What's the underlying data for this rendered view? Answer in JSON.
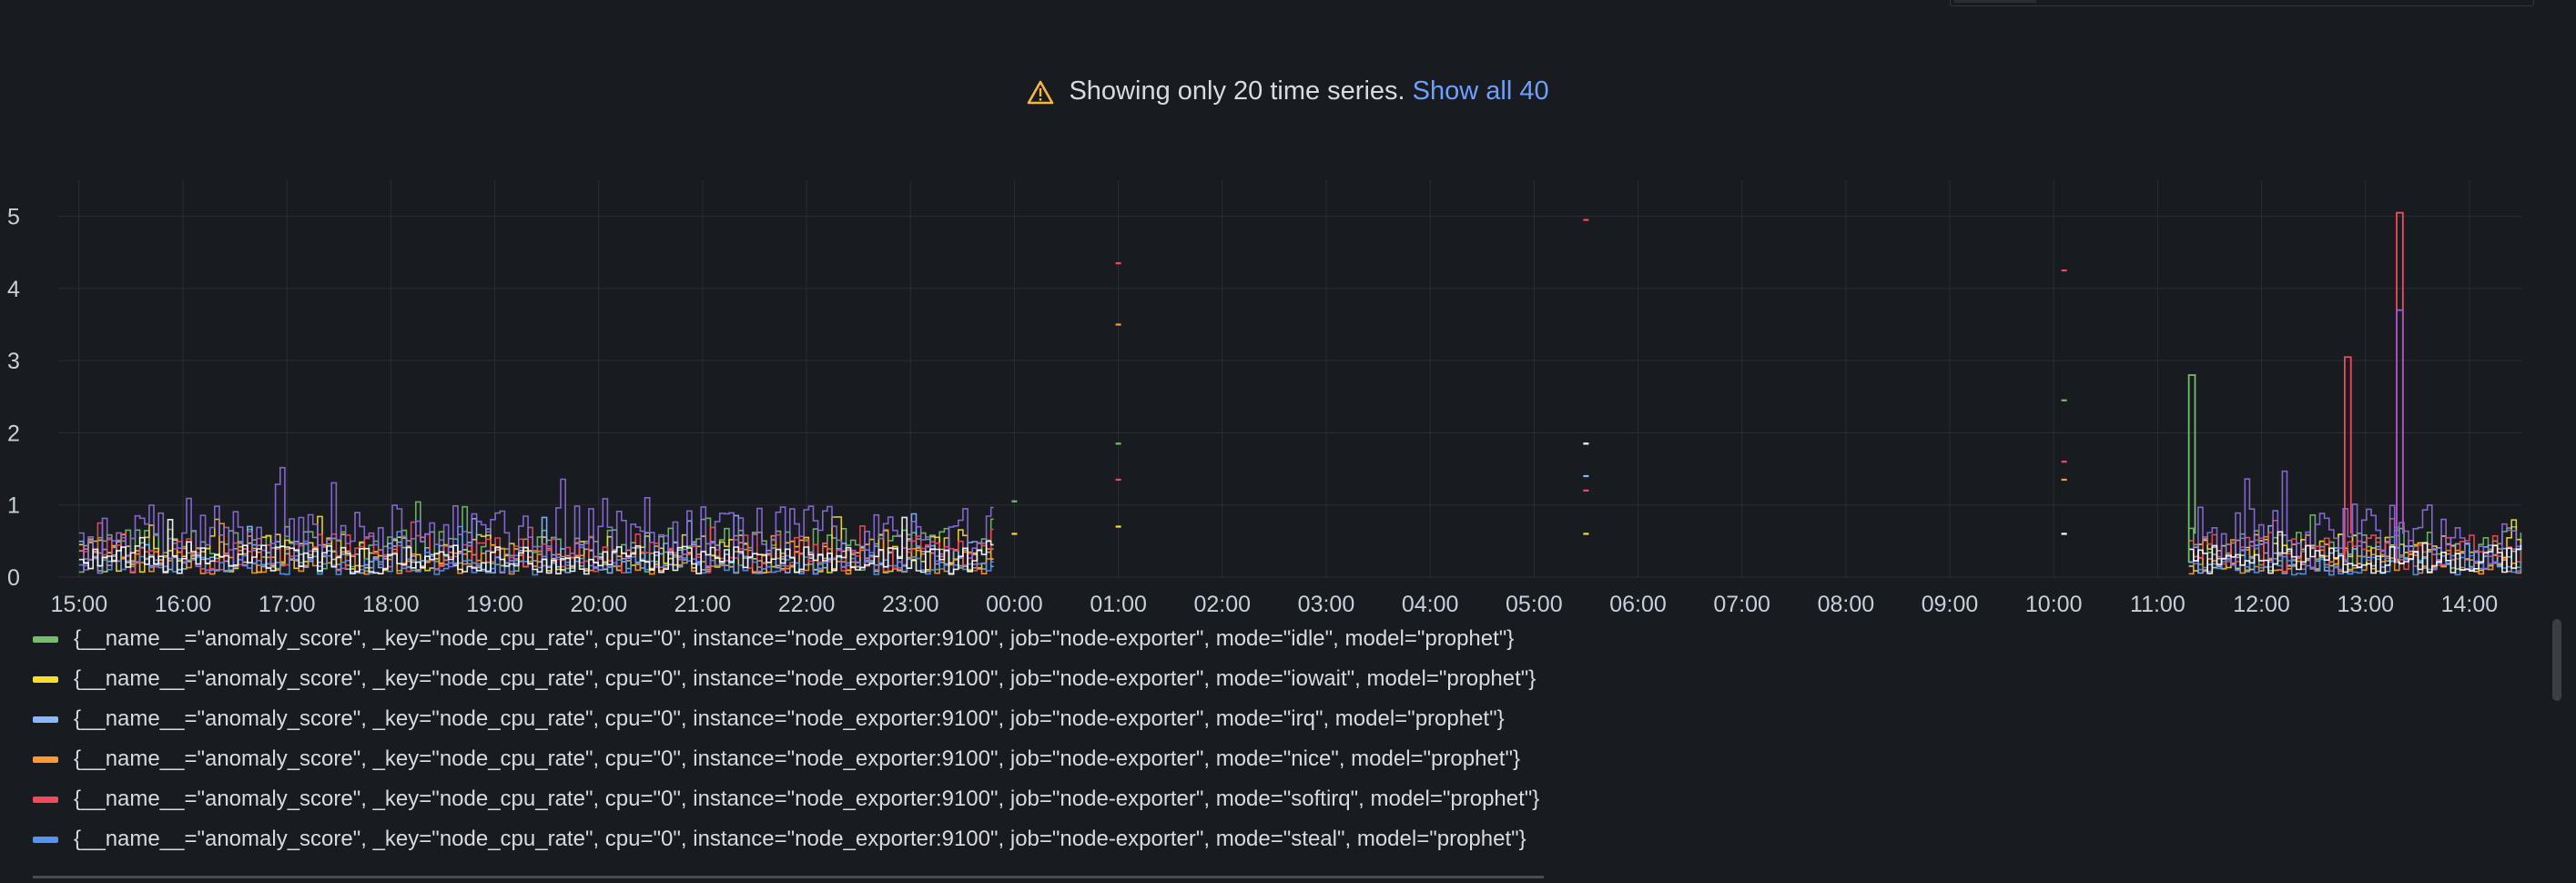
{
  "notice": {
    "text": "Showing only 20 time series.",
    "link": "Show all 40",
    "icon": "warning-triangle-icon"
  },
  "chart_data": {
    "type": "line",
    "title": "",
    "xlabel": "",
    "ylabel": "",
    "grid": true,
    "ylim": [
      0,
      5.5
    ],
    "y_ticks": [
      "0",
      "1",
      "2",
      "3",
      "4",
      "5"
    ],
    "x_ticks": [
      "15:00",
      "16:00",
      "17:00",
      "18:00",
      "19:00",
      "20:00",
      "21:00",
      "22:00",
      "23:00",
      "00:00",
      "01:00",
      "02:00",
      "03:00",
      "04:00",
      "05:00",
      "06:00",
      "07:00",
      "08:00",
      "09:00",
      "10:00",
      "11:00",
      "12:00",
      "13:00",
      "14:00"
    ],
    "x_range_hours": [
      14.8,
      38.5
    ],
    "segments": [
      {
        "from": 15.0,
        "to": 23.8
      },
      {
        "from": 35.3,
        "to": 38.5
      }
    ],
    "isolated_points": [
      {
        "x": 24.0,
        "y": 1.05,
        "color": "#73bf69"
      },
      {
        "x": 24.0,
        "y": 0.6,
        "color": "#fade2a"
      },
      {
        "x": 25.0,
        "y": 4.35,
        "color": "#f2495c"
      },
      {
        "x": 25.0,
        "y": 3.5,
        "color": "#ff9830"
      },
      {
        "x": 25.0,
        "y": 1.85,
        "color": "#73bf69"
      },
      {
        "x": 25.0,
        "y": 1.35,
        "color": "#f2495c"
      },
      {
        "x": 25.0,
        "y": 0.7,
        "color": "#fade2a"
      },
      {
        "x": 29.5,
        "y": 4.95,
        "color": "#f2495c"
      },
      {
        "x": 29.5,
        "y": 1.85,
        "color": "#ffffff"
      },
      {
        "x": 29.5,
        "y": 1.4,
        "color": "#8ab8ff"
      },
      {
        "x": 29.5,
        "y": 1.2,
        "color": "#f2495c"
      },
      {
        "x": 29.5,
        "y": 0.6,
        "color": "#fade2a"
      },
      {
        "x": 34.1,
        "y": 4.25,
        "color": "#f2495c"
      },
      {
        "x": 34.1,
        "y": 2.45,
        "color": "#73bf69"
      },
      {
        "x": 34.1,
        "y": 1.6,
        "color": "#f2495c"
      },
      {
        "x": 34.1,
        "y": 1.35,
        "color": "#ff9830"
      },
      {
        "x": 34.1,
        "y": 0.6,
        "color": "#ffffff"
      }
    ],
    "spikes": [
      {
        "x": 35.3,
        "y": 2.8,
        "color": "#73bf69"
      },
      {
        "x": 36.8,
        "y": 3.05,
        "color": "#f2495c"
      },
      {
        "x": 37.3,
        "y": 5.05,
        "color": "#f2495c"
      },
      {
        "x": 37.3,
        "y": 3.7,
        "color": "#a352cc"
      }
    ],
    "series": [
      {
        "name": "{__name__=\"anomaly_score\", _key=\"node_cpu_rate\", cpu=\"0\", instance=\"node_exporter:9100\", job=\"node-exporter\", mode=\"idle\", model=\"prophet\"}",
        "color": "#73bf69",
        "base": 0.35
      },
      {
        "name": "{__name__=\"anomaly_score\", _key=\"node_cpu_rate\", cpu=\"0\", instance=\"node_exporter:9100\", job=\"node-exporter\", mode=\"iowait\", model=\"prophet\"}",
        "color": "#fade2a",
        "base": 0.3
      },
      {
        "name": "{__name__=\"anomaly_score\", _key=\"node_cpu_rate\", cpu=\"0\", instance=\"node_exporter:9100\", job=\"node-exporter\", mode=\"irq\", model=\"prophet\"}",
        "color": "#8ab8ff",
        "base": 0.25
      },
      {
        "name": "{__name__=\"anomaly_score\", _key=\"node_cpu_rate\", cpu=\"0\", instance=\"node_exporter:9100\", job=\"node-exporter\", mode=\"nice\", model=\"prophet\"}",
        "color": "#ff9830",
        "base": 0.2
      },
      {
        "name": "{__name__=\"anomaly_score\", _key=\"node_cpu_rate\", cpu=\"0\", instance=\"node_exporter:9100\", job=\"node-exporter\", mode=\"softirq\", model=\"prophet\"}",
        "color": "#f2495c",
        "base": 0.3
      },
      {
        "name": "{__name__=\"anomaly_score\", _key=\"node_cpu_rate\", cpu=\"0\", instance=\"node_exporter:9100\", job=\"node-exporter\", mode=\"steal\", model=\"prophet\"}",
        "color": "#5794f2",
        "base": 0.15
      },
      {
        "name": "",
        "color": "#8f6fe0",
        "base": 0.5
      },
      {
        "name": "",
        "color": "#ffffff",
        "base": 0.22
      }
    ]
  }
}
